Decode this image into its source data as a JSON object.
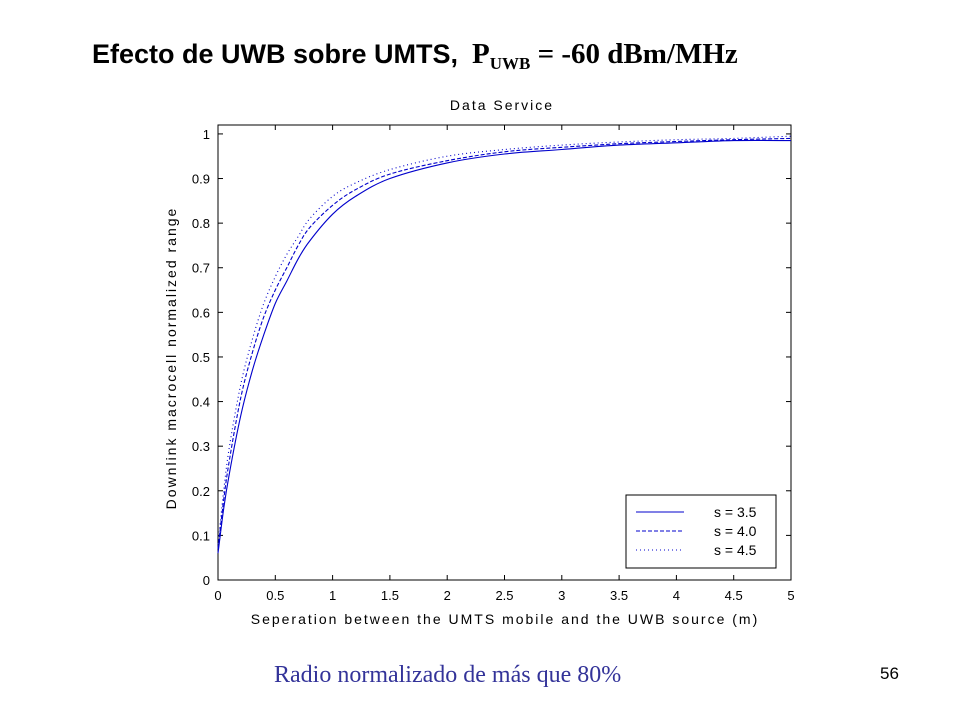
{
  "slide": {
    "title_main": "Efecto de UWB sobre UMTS,",
    "title_formula_p": "P",
    "title_formula_sub": "UWB",
    "title_formula_rest": " = -60 dBm/MHz",
    "caption": "Radio normalizado de más que 80%",
    "page_number": "56"
  },
  "chart_data": {
    "type": "line",
    "title": "Data Service",
    "xlabel": "Seperation between the UMTS mobile and the UWB source  (m)",
    "ylabel": "Downlink   macrocell  normalized  range",
    "xlim": [
      0,
      5
    ],
    "ylim": [
      0,
      1.02
    ],
    "xticks": [
      0,
      0.5,
      1,
      1.5,
      2,
      2.5,
      3,
      3.5,
      4,
      4.5,
      5
    ],
    "xtick_labels": [
      "0",
      "0.5",
      "1",
      "1.5",
      "2",
      "2.5",
      "3",
      "3.5",
      "4",
      "4.5",
      "5"
    ],
    "yticks": [
      0,
      0.1,
      0.2,
      0.3,
      0.4,
      0.5,
      0.6,
      0.7,
      0.8,
      0.9,
      1
    ],
    "ytick_labels": [
      "0",
      "0.1",
      "0.2",
      "0.3",
      "0.4",
      "0.5",
      "0.6",
      "0.7",
      "0.8",
      "0.9",
      "1"
    ],
    "grid": false,
    "legend_position": "bottom-right",
    "line_color": "#0000cc",
    "series": [
      {
        "name": "s = 3.5",
        "style": "solid",
        "x": [
          0,
          0.05,
          0.1,
          0.2,
          0.3,
          0.4,
          0.5,
          0.6,
          0.7,
          0.8,
          1.0,
          1.2,
          1.5,
          2.0,
          2.5,
          3.0,
          3.5,
          4.0,
          4.5,
          5.0
        ],
        "y": [
          0.06,
          0.16,
          0.24,
          0.37,
          0.47,
          0.55,
          0.62,
          0.67,
          0.72,
          0.76,
          0.82,
          0.86,
          0.9,
          0.935,
          0.955,
          0.965,
          0.975,
          0.98,
          0.985,
          0.985
        ]
      },
      {
        "name": "s = 4.0",
        "style": "dashed",
        "x": [
          0,
          0.05,
          0.1,
          0.2,
          0.3,
          0.4,
          0.5,
          0.6,
          0.7,
          0.8,
          1.0,
          1.2,
          1.5,
          2.0,
          2.5,
          3.0,
          3.5,
          4.0,
          4.5,
          5.0
        ],
        "y": [
          0.07,
          0.18,
          0.27,
          0.41,
          0.51,
          0.59,
          0.65,
          0.7,
          0.75,
          0.79,
          0.84,
          0.875,
          0.91,
          0.94,
          0.96,
          0.97,
          0.978,
          0.983,
          0.987,
          0.99
        ]
      },
      {
        "name": "s = 4.5",
        "style": "dotted",
        "x": [
          0,
          0.05,
          0.1,
          0.2,
          0.3,
          0.4,
          0.5,
          0.6,
          0.7,
          0.8,
          1.0,
          1.2,
          1.5,
          2.0,
          2.5,
          3.0,
          3.5,
          4.0,
          4.5,
          5.0
        ],
        "y": [
          0.08,
          0.2,
          0.3,
          0.44,
          0.54,
          0.62,
          0.68,
          0.73,
          0.77,
          0.81,
          0.86,
          0.89,
          0.92,
          0.95,
          0.965,
          0.975,
          0.982,
          0.987,
          0.99,
          0.995
        ]
      }
    ]
  }
}
